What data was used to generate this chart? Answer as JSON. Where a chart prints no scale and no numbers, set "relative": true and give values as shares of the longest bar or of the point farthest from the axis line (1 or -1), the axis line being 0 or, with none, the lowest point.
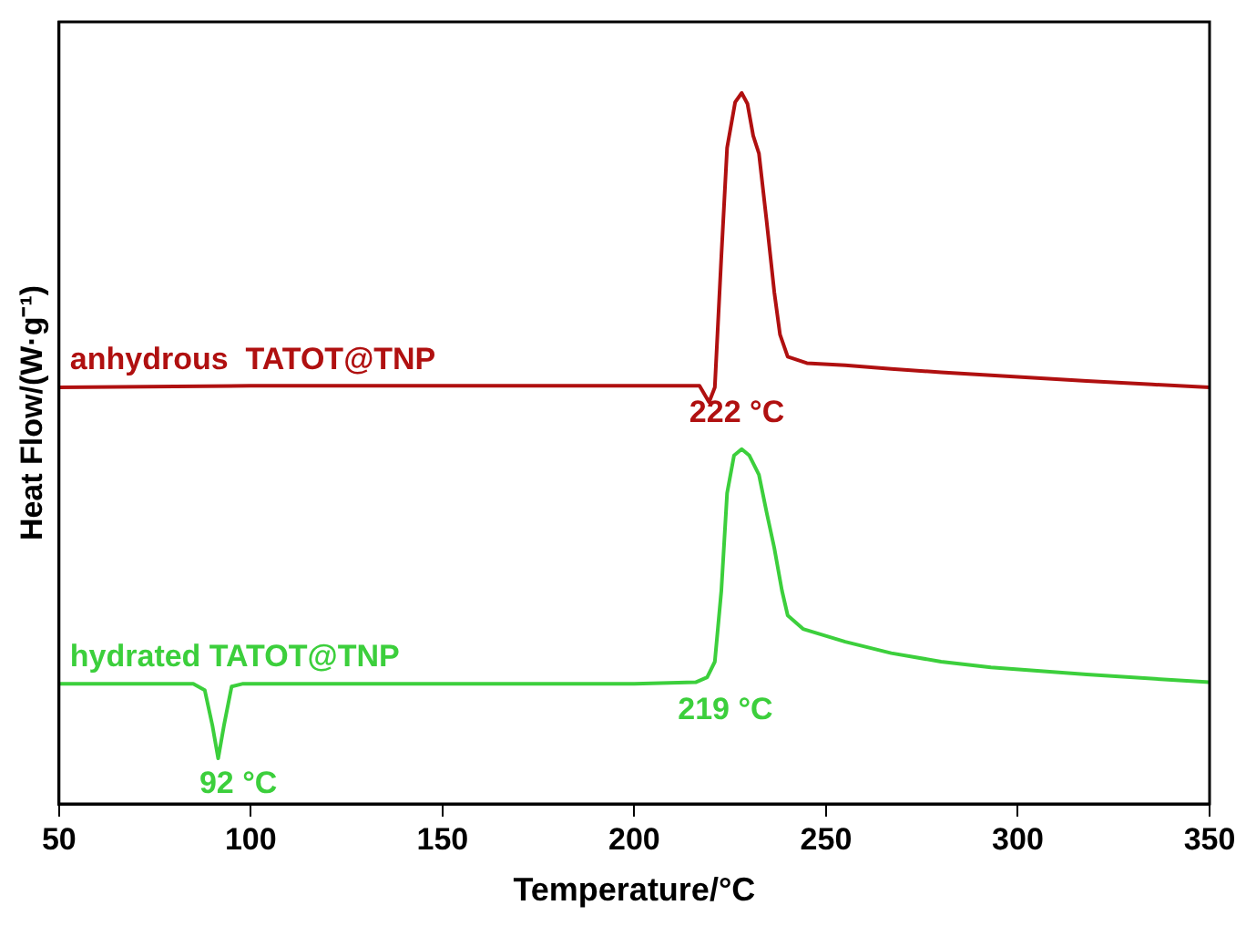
{
  "chart_data": {
    "type": "line",
    "relative": true,
    "xlabel": "Temperature/°C",
    "ylabel": "Heat Flow/(W·g⁻¹)",
    "xlim": [
      50,
      350
    ],
    "xticks": [
      50,
      100,
      150,
      200,
      250,
      300,
      350
    ],
    "grid": false,
    "legend": false,
    "marker": "none",
    "line_style": "solid",
    "series": [
      {
        "name": "anhydrous  TATOT@TNP",
        "color": "#b01010",
        "x": [
          50,
          100,
          150,
          200,
          217,
          219.5,
          221,
          222.7,
          224.2,
          226.3,
          228,
          229.5,
          231,
          232.5,
          234.5,
          236.5,
          238,
          240,
          245,
          255,
          267,
          280,
          293,
          318,
          335,
          350
        ],
        "values": [
          0.586,
          0.588,
          0.588,
          0.588,
          0.588,
          0.565,
          0.586,
          0.77,
          0.923,
          0.987,
          1,
          0.985,
          0.94,
          0.915,
          0.82,
          0.72,
          0.66,
          0.629,
          0.62,
          0.617,
          0.612,
          0.607,
          0.603,
          0.595,
          0.59,
          0.586
        ]
      },
      {
        "name": "hydrated TATOT@TNP",
        "color": "#3ccf3c",
        "x": [
          50,
          85,
          88,
          90,
          91.5,
          93,
          95,
          98,
          150,
          200,
          216,
          219,
          221,
          222.7,
          224.2,
          226,
          228,
          230,
          232.5,
          234.5,
          236.5,
          238.5,
          240,
          244,
          255,
          267,
          280,
          293,
          318,
          350
        ],
        "values": [
          0.169,
          0.169,
          0.16,
          0.11,
          0.064,
          0.11,
          0.165,
          0.169,
          0.169,
          0.169,
          0.171,
          0.178,
          0.2,
          0.3,
          0.437,
          0.49,
          0.499,
          0.49,
          0.463,
          0.41,
          0.36,
          0.3,
          0.265,
          0.246,
          0.228,
          0.212,
          0.2,
          0.192,
          0.182,
          0.171
        ]
      }
    ],
    "annotations": [
      {
        "text": "222 °C",
        "x": 222,
        "y": 0.586
      },
      {
        "text": "219 °C",
        "x": 219,
        "y": 0.169
      },
      {
        "text": "92 °C",
        "x": 92,
        "y": 0.064
      }
    ]
  }
}
